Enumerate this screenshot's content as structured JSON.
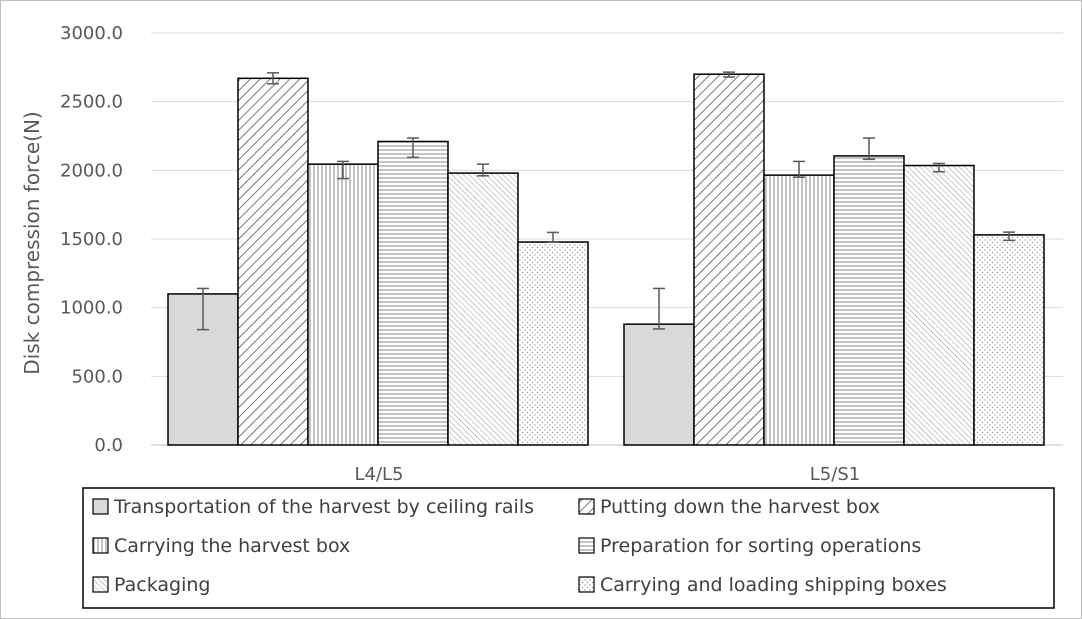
{
  "chart_data": {
    "type": "bar",
    "title": "",
    "xlabel": "",
    "ylabel": "Disk compression force(N)",
    "ylim": [
      0,
      3000
    ],
    "yticks": [
      "0.0",
      "500.0",
      "1000.0",
      "1500.0",
      "2000.0",
      "2500.0",
      "3000.0"
    ],
    "categories": [
      "L4/L5",
      "L5/S1"
    ],
    "grid": true,
    "legend_position": "bottom",
    "series": [
      {
        "name": "Transportation of the harvest by ceiling rails",
        "pattern": "solid-gray",
        "values": [
          1100,
          880
        ],
        "error_low": [
          840,
          845
        ],
        "error_high": [
          1140,
          1140
        ]
      },
      {
        "name": "Putting down the harvest box",
        "pattern": "diagonal-back",
        "values": [
          2670,
          2700
        ],
        "error_low": [
          2630,
          2680
        ],
        "error_high": [
          2710,
          2715
        ]
      },
      {
        "name": "Carrying the harvest box",
        "pattern": "vertical-lines",
        "values": [
          2045,
          1965
        ],
        "error_low": [
          1940,
          1950
        ],
        "error_high": [
          2065,
          2065
        ]
      },
      {
        "name": "Preparation for sorting operations",
        "pattern": "horizontal-lines",
        "values": [
          2210,
          2105
        ],
        "error_low": [
          2095,
          2080
        ],
        "error_high": [
          2235,
          2235
        ]
      },
      {
        "name": "Packaging",
        "pattern": "diagonal-fine",
        "values": [
          1980,
          2035
        ],
        "error_low": [
          1960,
          1990
        ],
        "error_high": [
          2045,
          2050
        ]
      },
      {
        "name": "Carrying and loading shipping boxes",
        "pattern": "dots",
        "values": [
          1478,
          1530
        ],
        "error_low": [
          1480,
          1490
        ],
        "error_high": [
          1548,
          1550
        ]
      }
    ],
    "colors": {
      "bar_stroke": "#000000",
      "grid": "#d9d9d9",
      "axis_text": "#595959",
      "error_bar": "#595959"
    }
  }
}
